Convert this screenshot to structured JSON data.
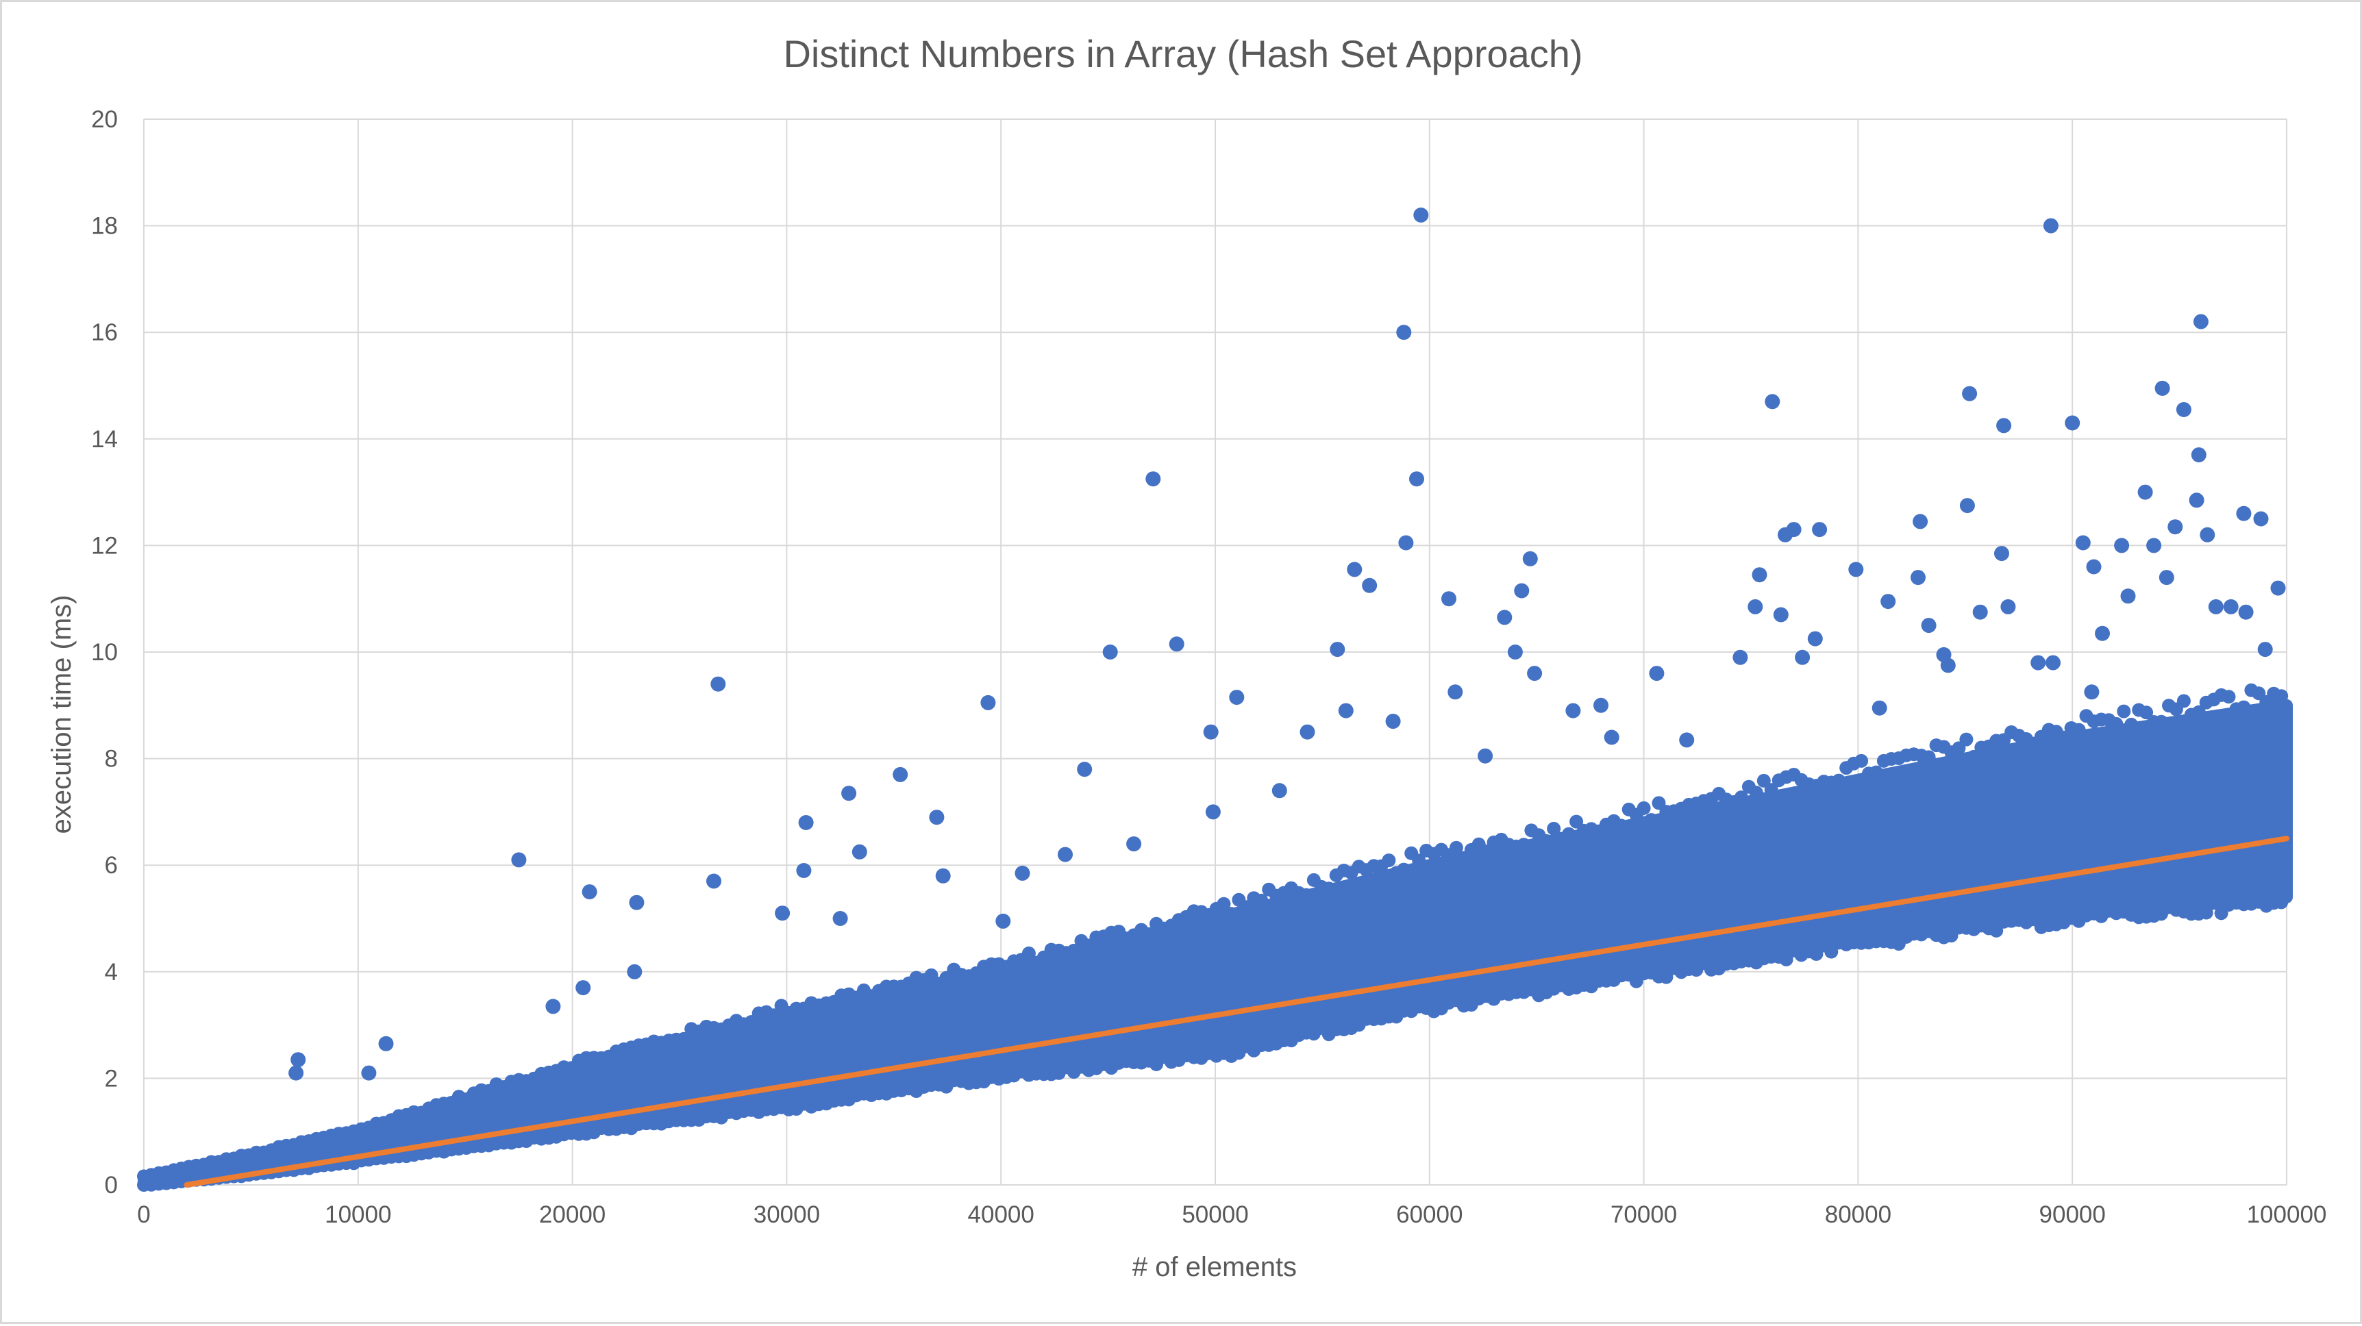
{
  "chart_data": {
    "type": "scatter",
    "title": "Distinct Numbers in Array (Hash Set Approach)",
    "xlabel": "# of elements",
    "ylabel": "execution time (ms)",
    "xlim": [
      0,
      100000
    ],
    "ylim": [
      0,
      20
    ],
    "x_ticks": [
      "0",
      "10000",
      "20000",
      "30000",
      "40000",
      "50000",
      "60000",
      "70000",
      "80000",
      "90000",
      "100000"
    ],
    "y_ticks": [
      "0",
      "2",
      "4",
      "6",
      "8",
      "10",
      "12",
      "14",
      "16",
      "18",
      "20"
    ],
    "grid": true,
    "legend": "none",
    "series": [
      {
        "kind": "scatter",
        "color": "#4472C4",
        "note_dense_band": "approximately one measurement per array size from 0 to 100000; dense band rising from ~0 ms to ~5.5-9 ms",
        "band": [
          {
            "x": 0,
            "low": 0.0,
            "high": 0.15
          },
          {
            "x": 5000,
            "low": 0.2,
            "high": 0.55
          },
          {
            "x": 10000,
            "low": 0.45,
            "high": 1.0
          },
          {
            "x": 20000,
            "low": 1.0,
            "high": 2.2
          },
          {
            "x": 30000,
            "low": 1.5,
            "high": 3.2
          },
          {
            "x": 40000,
            "low": 2.1,
            "high": 4.0
          },
          {
            "x": 50000,
            "low": 2.5,
            "high": 5.0
          },
          {
            "x": 60000,
            "low": 3.4,
            "high": 6.0
          },
          {
            "x": 70000,
            "low": 4.0,
            "high": 6.8
          },
          {
            "x": 80000,
            "low": 4.6,
            "high": 7.6
          },
          {
            "x": 90000,
            "low": 5.1,
            "high": 8.4
          },
          {
            "x": 100000,
            "low": 5.4,
            "high": 9.0
          }
        ],
        "outliers": [
          {
            "x": 7200,
            "y": 2.35
          },
          {
            "x": 7100,
            "y": 2.1
          },
          {
            "x": 10500,
            "y": 2.1
          },
          {
            "x": 11300,
            "y": 2.65
          },
          {
            "x": 17500,
            "y": 6.1
          },
          {
            "x": 19100,
            "y": 3.35
          },
          {
            "x": 20800,
            "y": 5.5
          },
          {
            "x": 20500,
            "y": 3.7
          },
          {
            "x": 23000,
            "y": 5.3
          },
          {
            "x": 22900,
            "y": 4.0
          },
          {
            "x": 26800,
            "y": 9.4
          },
          {
            "x": 26600,
            "y": 5.7
          },
          {
            "x": 30900,
            "y": 6.8
          },
          {
            "x": 30800,
            "y": 5.9
          },
          {
            "x": 29800,
            "y": 5.1
          },
          {
            "x": 32900,
            "y": 7.35
          },
          {
            "x": 33400,
            "y": 6.25
          },
          {
            "x": 32500,
            "y": 5.0
          },
          {
            "x": 35300,
            "y": 7.7
          },
          {
            "x": 37000,
            "y": 6.9
          },
          {
            "x": 37300,
            "y": 5.8
          },
          {
            "x": 39400,
            "y": 9.05
          },
          {
            "x": 40100,
            "y": 4.95
          },
          {
            "x": 41000,
            "y": 5.85
          },
          {
            "x": 43000,
            "y": 6.2
          },
          {
            "x": 43900,
            "y": 7.8
          },
          {
            "x": 45100,
            "y": 10.0
          },
          {
            "x": 46200,
            "y": 6.4
          },
          {
            "x": 47100,
            "y": 13.25
          },
          {
            "x": 48200,
            "y": 10.15
          },
          {
            "x": 49800,
            "y": 8.5
          },
          {
            "x": 49900,
            "y": 7.0
          },
          {
            "x": 51000,
            "y": 9.15
          },
          {
            "x": 53000,
            "y": 7.4
          },
          {
            "x": 55700,
            "y": 10.05
          },
          {
            "x": 56500,
            "y": 11.55
          },
          {
            "x": 57200,
            "y": 11.25
          },
          {
            "x": 58800,
            "y": 16.0
          },
          {
            "x": 58900,
            "y": 12.05
          },
          {
            "x": 59400,
            "y": 13.25
          },
          {
            "x": 59600,
            "y": 18.2
          },
          {
            "x": 60900,
            "y": 11.0
          },
          {
            "x": 61200,
            "y": 9.25
          },
          {
            "x": 63500,
            "y": 10.65
          },
          {
            "x": 64300,
            "y": 11.15
          },
          {
            "x": 64700,
            "y": 11.75
          },
          {
            "x": 64000,
            "y": 10.0
          },
          {
            "x": 64900,
            "y": 9.6
          },
          {
            "x": 68000,
            "y": 9.0
          },
          {
            "x": 70600,
            "y": 9.6
          },
          {
            "x": 74500,
            "y": 9.9
          },
          {
            "x": 75400,
            "y": 11.45
          },
          {
            "x": 75200,
            "y": 10.85
          },
          {
            "x": 76000,
            "y": 14.7
          },
          {
            "x": 76600,
            "y": 12.2
          },
          {
            "x": 77000,
            "y": 12.3
          },
          {
            "x": 76400,
            "y": 10.7
          },
          {
            "x": 78200,
            "y": 12.3
          },
          {
            "x": 78000,
            "y": 10.25
          },
          {
            "x": 79900,
            "y": 11.55
          },
          {
            "x": 81400,
            "y": 10.95
          },
          {
            "x": 82800,
            "y": 11.4
          },
          {
            "x": 82900,
            "y": 12.45
          },
          {
            "x": 83300,
            "y": 10.5
          },
          {
            "x": 84200,
            "y": 9.75
          },
          {
            "x": 85100,
            "y": 12.75
          },
          {
            "x": 85200,
            "y": 14.85
          },
          {
            "x": 85700,
            "y": 10.75
          },
          {
            "x": 86700,
            "y": 11.85
          },
          {
            "x": 86800,
            "y": 14.25
          },
          {
            "x": 87000,
            "y": 10.85
          },
          {
            "x": 89000,
            "y": 18.0
          },
          {
            "x": 89100,
            "y": 9.8
          },
          {
            "x": 90000,
            "y": 14.3
          },
          {
            "x": 90500,
            "y": 12.05
          },
          {
            "x": 91000,
            "y": 11.6
          },
          {
            "x": 91400,
            "y": 10.35
          },
          {
            "x": 92300,
            "y": 12.0
          },
          {
            "x": 92600,
            "y": 11.05
          },
          {
            "x": 93400,
            "y": 13.0
          },
          {
            "x": 93800,
            "y": 12.0
          },
          {
            "x": 94200,
            "y": 14.95
          },
          {
            "x": 94400,
            "y": 11.4
          },
          {
            "x": 94800,
            "y": 12.35
          },
          {
            "x": 95200,
            "y": 14.55
          },
          {
            "x": 95900,
            "y": 13.7
          },
          {
            "x": 95800,
            "y": 12.85
          },
          {
            "x": 96000,
            "y": 16.2
          },
          {
            "x": 96300,
            "y": 12.2
          },
          {
            "x": 96700,
            "y": 10.85
          },
          {
            "x": 97400,
            "y": 10.85
          },
          {
            "x": 98000,
            "y": 12.6
          },
          {
            "x": 98100,
            "y": 10.75
          },
          {
            "x": 98800,
            "y": 12.5
          },
          {
            "x": 99000,
            "y": 10.05
          },
          {
            "x": 99600,
            "y": 11.2
          },
          {
            "x": 99400,
            "y": 9.1
          },
          {
            "x": 90900,
            "y": 9.25
          },
          {
            "x": 88400,
            "y": 9.8
          },
          {
            "x": 84000,
            "y": 9.95
          },
          {
            "x": 81000,
            "y": 8.95
          },
          {
            "x": 77400,
            "y": 9.9
          },
          {
            "x": 72000,
            "y": 8.35
          },
          {
            "x": 68500,
            "y": 8.4
          },
          {
            "x": 66700,
            "y": 8.9
          },
          {
            "x": 62600,
            "y": 8.05
          },
          {
            "x": 58300,
            "y": 8.7
          },
          {
            "x": 56100,
            "y": 8.9
          },
          {
            "x": 54300,
            "y": 8.5
          }
        ]
      },
      {
        "kind": "trendline",
        "color": "#ED7D31",
        "points": [
          [
            2000,
            0.0
          ],
          [
            100000,
            6.5
          ]
        ]
      }
    ]
  }
}
